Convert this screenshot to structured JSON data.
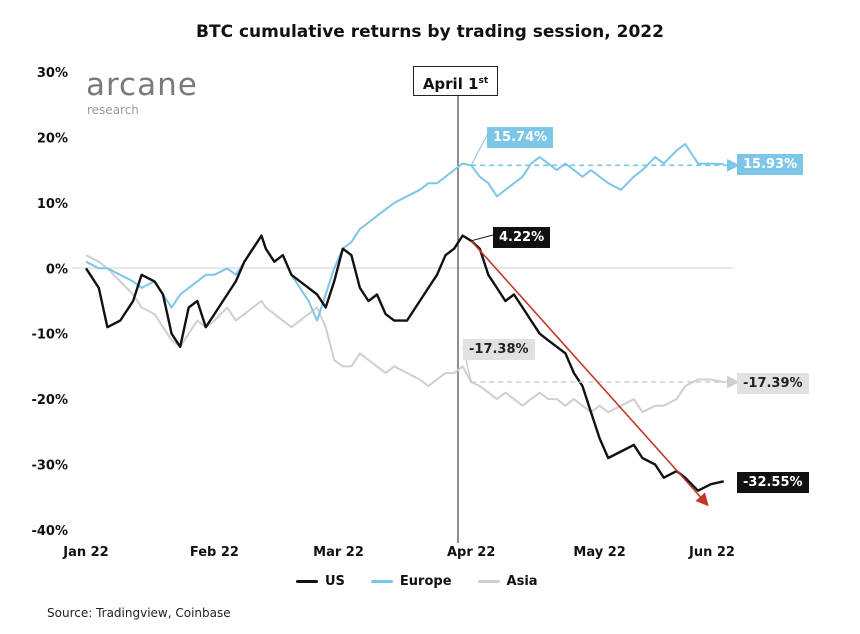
{
  "chart_data": {
    "type": "line",
    "title": "BTC cumulative returns by trading session, 2022",
    "xlabel": "",
    "ylabel": "",
    "ylim": [
      -40,
      30
    ],
    "yticks": [
      "30%",
      "20%",
      "10%",
      "0%",
      "-10%",
      "-20%",
      "-30%",
      "-40%"
    ],
    "xticks": [
      "Jan 22",
      "Feb 22",
      "Mar 22",
      "Apr 22",
      "May 22",
      "Jun 22"
    ],
    "legend_position": "bottom",
    "grid": false,
    "series": [
      {
        "name": "US",
        "color": "#111111",
        "values": [
          [
            0,
            0
          ],
          [
            3,
            -3
          ],
          [
            5,
            -9
          ],
          [
            8,
            -8
          ],
          [
            11,
            -5
          ],
          [
            13,
            -1
          ],
          [
            16,
            -2
          ],
          [
            18,
            -4
          ],
          [
            20,
            -10
          ],
          [
            22,
            -12
          ],
          [
            24,
            -6
          ],
          [
            26,
            -5
          ],
          [
            28,
            -9
          ],
          [
            30,
            -7
          ],
          [
            33,
            -4
          ],
          [
            35,
            -2
          ],
          [
            37,
            1
          ],
          [
            39,
            3
          ],
          [
            41,
            5
          ],
          [
            42,
            3
          ],
          [
            44,
            1
          ],
          [
            46,
            2
          ],
          [
            48,
            -1
          ],
          [
            50,
            -2
          ],
          [
            52,
            -3
          ],
          [
            54,
            -4
          ],
          [
            56,
            -6
          ],
          [
            58,
            -2
          ],
          [
            60,
            3
          ],
          [
            62,
            2
          ],
          [
            64,
            -3
          ],
          [
            66,
            -5
          ],
          [
            68,
            -4
          ],
          [
            70,
            -7
          ],
          [
            72,
            -8
          ],
          [
            75,
            -8
          ],
          [
            78,
            -5
          ],
          [
            80,
            -3
          ],
          [
            82,
            -1
          ],
          [
            84,
            2
          ],
          [
            86,
            3
          ],
          [
            88,
            5
          ],
          [
            90,
            4.2
          ],
          [
            92,
            3
          ],
          [
            94,
            -1
          ],
          [
            96,
            -3
          ],
          [
            98,
            -5
          ],
          [
            100,
            -4
          ],
          [
            102,
            -6
          ],
          [
            104,
            -8
          ],
          [
            106,
            -10
          ],
          [
            108,
            -11
          ],
          [
            110,
            -12
          ],
          [
            112,
            -13
          ],
          [
            114,
            -16
          ],
          [
            116,
            -18
          ],
          [
            118,
            -22
          ],
          [
            120,
            -26
          ],
          [
            122,
            -29
          ],
          [
            125,
            -28
          ],
          [
            128,
            -27
          ],
          [
            130,
            -29
          ],
          [
            133,
            -30
          ],
          [
            135,
            -32
          ],
          [
            138,
            -31
          ],
          [
            140,
            -32
          ],
          [
            143,
            -34
          ],
          [
            146,
            -33
          ],
          [
            149,
            -32.55
          ]
        ]
      },
      {
        "name": "Europe",
        "color": "#7dc6e8",
        "values": [
          [
            0,
            1
          ],
          [
            3,
            0
          ],
          [
            5,
            0
          ],
          [
            8,
            -1
          ],
          [
            11,
            -2
          ],
          [
            13,
            -3
          ],
          [
            16,
            -2
          ],
          [
            18,
            -4
          ],
          [
            20,
            -6
          ],
          [
            22,
            -4
          ],
          [
            24,
            -3
          ],
          [
            26,
            -2
          ],
          [
            28,
            -1
          ],
          [
            30,
            -1
          ],
          [
            33,
            0
          ],
          [
            35,
            -1
          ],
          [
            37,
            1
          ],
          [
            39,
            3
          ],
          [
            41,
            5
          ],
          [
            42,
            3
          ],
          [
            44,
            1
          ],
          [
            46,
            2
          ],
          [
            48,
            -1
          ],
          [
            50,
            -3
          ],
          [
            52,
            -5
          ],
          [
            54,
            -8
          ],
          [
            56,
            -4
          ],
          [
            58,
            0
          ],
          [
            60,
            3
          ],
          [
            62,
            4
          ],
          [
            64,
            6
          ],
          [
            66,
            7
          ],
          [
            68,
            8
          ],
          [
            70,
            9
          ],
          [
            72,
            10
          ],
          [
            75,
            11
          ],
          [
            78,
            12
          ],
          [
            80,
            13
          ],
          [
            82,
            13
          ],
          [
            84,
            14
          ],
          [
            86,
            15
          ],
          [
            88,
            16
          ],
          [
            90,
            15.74
          ],
          [
            92,
            14
          ],
          [
            94,
            13
          ],
          [
            96,
            11
          ],
          [
            98,
            12
          ],
          [
            100,
            13
          ],
          [
            102,
            14
          ],
          [
            104,
            16
          ],
          [
            106,
            17
          ],
          [
            108,
            16
          ],
          [
            110,
            15
          ],
          [
            112,
            16
          ],
          [
            114,
            15
          ],
          [
            116,
            14
          ],
          [
            118,
            15
          ],
          [
            120,
            14
          ],
          [
            122,
            13
          ],
          [
            125,
            12
          ],
          [
            128,
            14
          ],
          [
            130,
            15
          ],
          [
            133,
            17
          ],
          [
            135,
            16
          ],
          [
            138,
            18
          ],
          [
            140,
            19
          ],
          [
            143,
            16
          ],
          [
            146,
            16
          ],
          [
            149,
            15.93
          ]
        ]
      },
      {
        "name": "Asia",
        "color": "#cfcfcf",
        "values": [
          [
            0,
            2
          ],
          [
            3,
            1
          ],
          [
            5,
            0
          ],
          [
            8,
            -2
          ],
          [
            11,
            -4
          ],
          [
            13,
            -6
          ],
          [
            16,
            -7
          ],
          [
            18,
            -9
          ],
          [
            20,
            -11
          ],
          [
            22,
            -12
          ],
          [
            24,
            -10
          ],
          [
            26,
            -8
          ],
          [
            28,
            -9
          ],
          [
            30,
            -8
          ],
          [
            33,
            -6
          ],
          [
            35,
            -8
          ],
          [
            37,
            -7
          ],
          [
            39,
            -6
          ],
          [
            41,
            -5
          ],
          [
            42,
            -6
          ],
          [
            44,
            -7
          ],
          [
            46,
            -8
          ],
          [
            48,
            -9
          ],
          [
            50,
            -8
          ],
          [
            52,
            -7
          ],
          [
            54,
            -6
          ],
          [
            56,
            -9
          ],
          [
            58,
            -14
          ],
          [
            60,
            -15
          ],
          [
            62,
            -15
          ],
          [
            64,
            -13
          ],
          [
            66,
            -14
          ],
          [
            68,
            -15
          ],
          [
            70,
            -16
          ],
          [
            72,
            -15
          ],
          [
            75,
            -16
          ],
          [
            78,
            -17
          ],
          [
            80,
            -18
          ],
          [
            82,
            -17
          ],
          [
            84,
            -16
          ],
          [
            86,
            -16
          ],
          [
            88,
            -15
          ],
          [
            90,
            -17.38
          ],
          [
            92,
            -18
          ],
          [
            94,
            -19
          ],
          [
            96,
            -20
          ],
          [
            98,
            -19
          ],
          [
            100,
            -20
          ],
          [
            102,
            -21
          ],
          [
            104,
            -20
          ],
          [
            106,
            -19
          ],
          [
            108,
            -20
          ],
          [
            110,
            -20
          ],
          [
            112,
            -21
          ],
          [
            114,
            -20
          ],
          [
            116,
            -21
          ],
          [
            118,
            -22
          ],
          [
            120,
            -21
          ],
          [
            122,
            -22
          ],
          [
            125,
            -21
          ],
          [
            128,
            -20
          ],
          [
            130,
            -22
          ],
          [
            133,
            -21
          ],
          [
            135,
            -21
          ],
          [
            138,
            -20
          ],
          [
            140,
            -18
          ],
          [
            143,
            -17
          ],
          [
            146,
            -17
          ],
          [
            149,
            -17.39
          ]
        ]
      }
    ],
    "annotations": {
      "vline": "April 1",
      "vline_sup": "st",
      "us_start": "4.22%",
      "us_end": "-32.55%",
      "europe_start": "15.74%",
      "europe_end": "15.93%",
      "asia_start": "-17.38%",
      "asia_end": "-17.39%"
    }
  },
  "logo": {
    "word": "arcane",
    "sub": "research"
  },
  "legend": {
    "us": "US",
    "europe": "Europe",
    "asia": "Asia"
  },
  "source": "Source: Tradingview, Coinbase",
  "colors": {
    "us": "#111111",
    "europe": "#7dc6e8",
    "asia": "#cfcfcf",
    "trend": "#c0392b"
  }
}
